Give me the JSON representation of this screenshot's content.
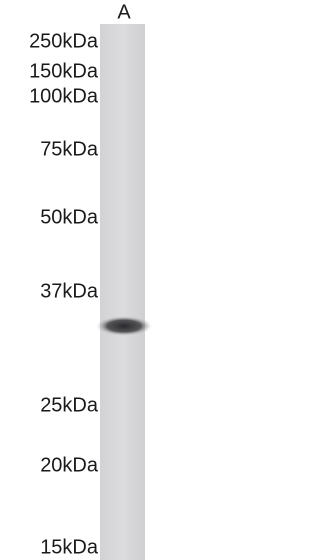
{
  "lane_label": "A",
  "markers": [
    "250kDa",
    "150kDa",
    "100kDa",
    "75kDa",
    "50kDa",
    "37kDa",
    "25kDa",
    "20kDa",
    "15kDa"
  ]
}
